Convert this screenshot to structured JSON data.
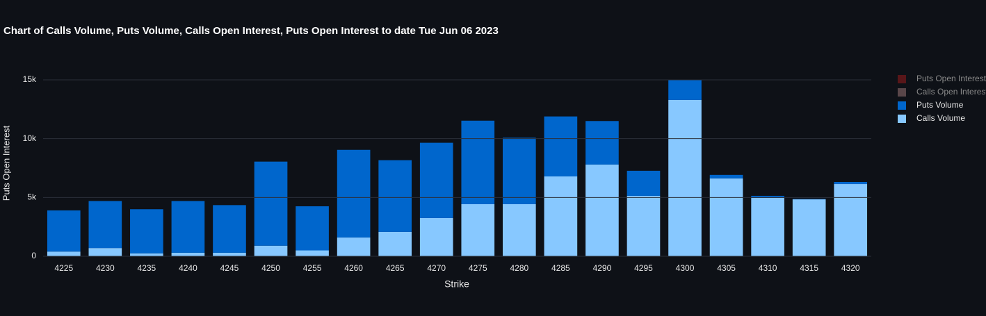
{
  "chart_data": {
    "type": "bar",
    "stacked": true,
    "title": "Chart of Calls Volume, Puts Volume, Calls Open Interest, Puts Open Interest to date Tue Jun 06 2023",
    "x_label": "Strike",
    "y_label": "Puts Open Interest",
    "categories": [
      "4225",
      "4230",
      "4235",
      "4240",
      "4245",
      "4250",
      "4255",
      "4260",
      "4265",
      "4270",
      "4275",
      "4280",
      "4285",
      "4290",
      "4295",
      "4300",
      "4305",
      "4310",
      "4315",
      "4320"
    ],
    "series": [
      {
        "name": "Calls Volume",
        "color": "#87c8ff",
        "values": [
          400,
          700,
          250,
          300,
          300,
          900,
          500,
          1600,
          2070,
          3250,
          4430,
          4430,
          6790,
          7800,
          5140,
          13290,
          6620,
          4960,
          4840,
          6140
        ]
      },
      {
        "name": "Puts Volume",
        "color": "#0066cc",
        "values": [
          3500,
          4000,
          3750,
          4400,
          4050,
          7150,
          3750,
          7450,
          6100,
          6400,
          7100,
          5650,
          5100,
          3700,
          2130,
          1750,
          300,
          180,
          30,
          180
        ]
      },
      {
        "name": "Calls Open Interest",
        "color": "#8c6a6a",
        "hidden": true
      },
      {
        "name": "Puts Open Interest",
        "color": "#8b1a1a",
        "hidden": true
      }
    ],
    "ylim": [
      0,
      15000
    ],
    "yticks": [
      0,
      {
        "value": 5000,
        "label": "5k"
      },
      {
        "value": 10000,
        "label": "10k"
      },
      {
        "value": 15000,
        "label": "15k"
      }
    ],
    "grid": true,
    "legend": "right"
  }
}
